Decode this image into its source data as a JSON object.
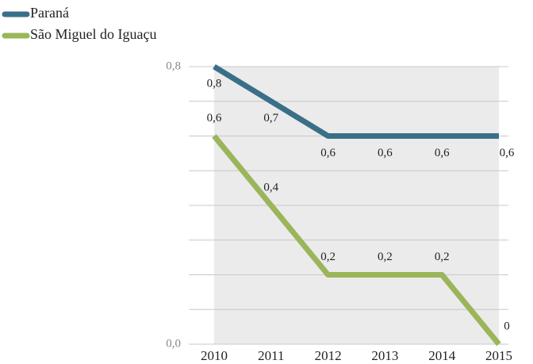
{
  "chart_data": {
    "type": "line",
    "x": [
      2010,
      2011,
      2012,
      2013,
      2014,
      2015
    ],
    "series": [
      {
        "name": "Paraná",
        "color": "#3a6f88",
        "values": [
          0.8,
          0.7,
          0.6,
          0.6,
          0.6,
          0.6
        ],
        "value_labels": [
          "0,8",
          "0,7",
          "0,6",
          "0,6",
          "0,6",
          "0,6"
        ]
      },
      {
        "name": "São Miguel do Iguaçu",
        "color": "#9bb55a",
        "values": [
          0.6,
          0.4,
          0.2,
          0.2,
          0.2,
          0
        ],
        "value_labels": [
          "0,6",
          "0,4",
          "0,2",
          "0,2",
          "0,2",
          "0"
        ]
      }
    ],
    "xlim": [
      2010,
      2015
    ],
    "ylim": [
      0,
      0.8
    ],
    "yticks": [
      {
        "value": 0,
        "label": "0,0"
      },
      {
        "value": 0.8,
        "label": "0,8"
      }
    ],
    "minor_yticks": [
      0.1,
      0.2,
      0.3,
      0.4,
      0.5,
      0.6,
      0.7
    ],
    "grid": true,
    "legend": "top-left"
  }
}
